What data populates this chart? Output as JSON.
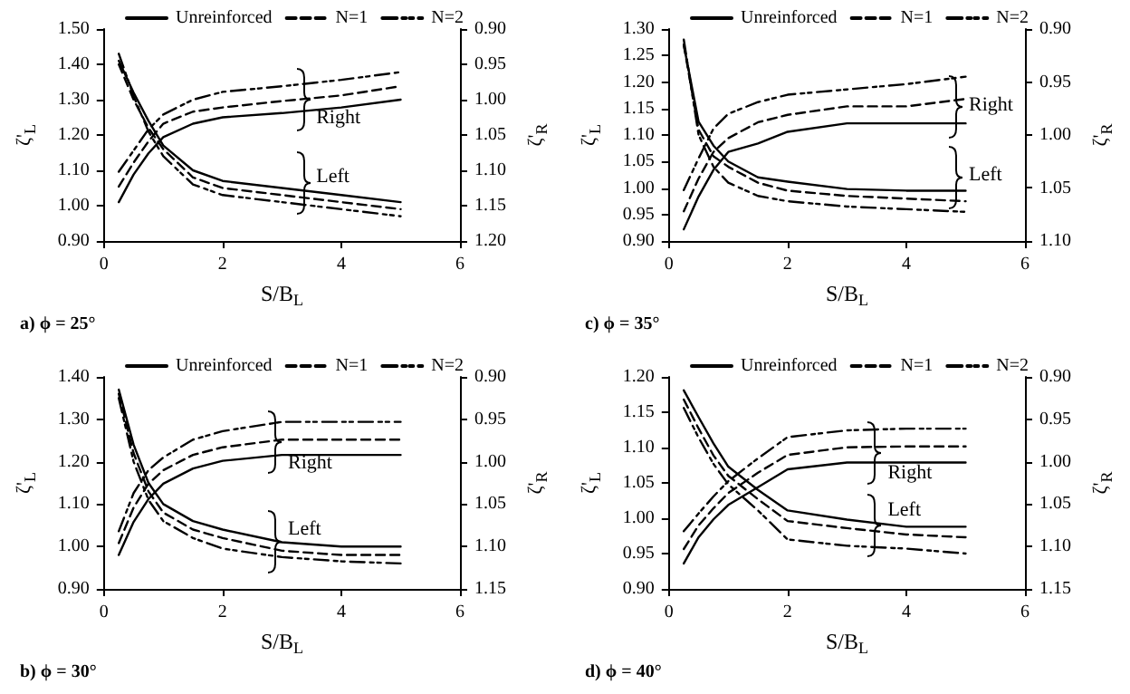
{
  "chart_data": [
    {
      "type": "line",
      "title": "a) ϕ = 25°",
      "xlabel": "S/B$_{L}$",
      "ylabel": "ζ'$_{L}$",
      "y2label": "ζ'$_{R}$",
      "legend": "top",
      "x": [
        0.25,
        0.5,
        0.75,
        1,
        1.5,
        2,
        3,
        4,
        5
      ],
      "xlim": [
        0,
        6
      ],
      "xticks": [
        0,
        2,
        4,
        6
      ],
      "ylim": [
        0.9,
        1.5
      ],
      "yticks": [
        {
          "value": 0.9,
          "label": "0.90"
        },
        {
          "value": 1.0,
          "label": "1.00"
        },
        {
          "value": 1.1,
          "label": "1.10"
        },
        {
          "value": 1.2,
          "label": "1.20"
        },
        {
          "value": 1.3,
          "label": "1.30"
        },
        {
          "value": 1.4,
          "label": "1.40"
        },
        {
          "value": 1.5,
          "label": "1.50"
        }
      ],
      "y2lim": [
        1.2,
        0.9
      ],
      "y2ticks": [
        {
          "value": 0.9,
          "label": "0.90"
        },
        {
          "value": 0.95,
          "label": "0.95"
        },
        {
          "value": 1.0,
          "label": "1.00"
        },
        {
          "value": 1.05,
          "label": "1.05"
        },
        {
          "value": 1.1,
          "label": "1.10"
        },
        {
          "value": 1.15,
          "label": "1.15"
        },
        {
          "value": 1.2,
          "label": "1.20"
        }
      ],
      "series": [
        {
          "name": "Unreinforced",
          "color": "#000000",
          "line_style": "solid",
          "values": [
            1.41,
            1.32,
            1.24,
            1.17,
            1.1,
            1.07,
            1.05,
            1.03,
            1.01
          ]
        },
        {
          "name": "N=1",
          "color": "#000000",
          "line_style": "dashed",
          "values": [
            1.4,
            1.3,
            1.22,
            1.16,
            1.08,
            1.05,
            1.03,
            1.01,
            0.99
          ]
        },
        {
          "name": "N=2",
          "color": "#000000",
          "line_style": "dashdot",
          "values": [
            1.43,
            1.31,
            1.21,
            1.14,
            1.06,
            1.03,
            1.01,
            0.99,
            0.97
          ]
        },
        {
          "color": "#000000",
          "line_style": "solid",
          "axis": "y2",
          "values": [
            1.145,
            1.106,
            1.076,
            1.053,
            1.034,
            1.025,
            1.019,
            1.011,
            1.0
          ]
        },
        {
          "color": "#000000",
          "line_style": "dashed",
          "axis": "y2",
          "values": [
            1.123,
            1.089,
            1.059,
            1.034,
            1.017,
            1.011,
            1.002,
            0.994,
            0.981
          ]
        },
        {
          "color": "#000000",
          "line_style": "dashdot",
          "axis": "y2",
          "values": [
            1.102,
            1.072,
            1.042,
            1.021,
            1.0,
            0.989,
            0.981,
            0.972,
            0.961
          ]
        }
      ],
      "annotations": [
        "Right",
        "Left"
      ]
    },
    {
      "type": "line",
      "title": "c) ϕ = 35°",
      "xlabel": "S/B$_{L}$",
      "ylabel": "ζ'$_{L}$",
      "y2label": "ζ'$_{R}$",
      "legend": "top",
      "x": [
        0.25,
        0.5,
        0.75,
        1,
        1.5,
        2,
        3,
        4,
        5
      ],
      "xlim": [
        0,
        6
      ],
      "xticks": [
        0,
        2,
        4,
        6
      ],
      "ylim": [
        0.9,
        1.3
      ],
      "yticks": [
        {
          "value": 0.9,
          "label": "0.90"
        },
        {
          "value": 0.95,
          "label": "0.95"
        },
        {
          "value": 1.0,
          "label": "1.00"
        },
        {
          "value": 1.05,
          "label": "1.05"
        },
        {
          "value": 1.1,
          "label": "1.10"
        },
        {
          "value": 1.15,
          "label": "1.15"
        },
        {
          "value": 1.2,
          "label": "1.20"
        },
        {
          "value": 1.25,
          "label": "1.25"
        },
        {
          "value": 1.3,
          "label": "1.30"
        }
      ],
      "y2lim": [
        1.1,
        0.9
      ],
      "y2ticks": [
        {
          "value": 0.9,
          "label": "0.90"
        },
        {
          "value": 0.95,
          "label": "0.95"
        },
        {
          "value": 1.0,
          "label": "1.00"
        },
        {
          "value": 1.05,
          "label": "1.05"
        },
        {
          "value": 1.1,
          "label": "1.10"
        }
      ],
      "series": [
        {
          "name": "Unreinforced",
          "color": "#000000",
          "line_style": "solid",
          "values": [
            1.27,
            1.125,
            1.08,
            1.05,
            1.02,
            1.012,
            0.998,
            0.995,
            0.995
          ]
        },
        {
          "name": "N=1",
          "color": "#000000",
          "line_style": "dashed",
          "values": [
            1.27,
            1.11,
            1.06,
            1.04,
            1.01,
            0.995,
            0.985,
            0.98,
            0.975
          ]
        },
        {
          "name": "N=2",
          "color": "#000000",
          "line_style": "dashdot",
          "values": [
            1.28,
            1.1,
            1.04,
            1.01,
            0.985,
            0.975,
            0.965,
            0.96,
            0.955
          ]
        },
        {
          "color": "#000000",
          "line_style": "solid",
          "axis": "y2",
          "values": [
            1.089,
            1.058,
            1.033,
            1.016,
            1.008,
            0.997,
            0.989,
            0.989,
            0.989
          ]
        },
        {
          "color": "#000000",
          "line_style": "dashed",
          "axis": "y2",
          "values": [
            1.072,
            1.041,
            1.016,
            1.003,
            0.988,
            0.981,
            0.973,
            0.973,
            0.966
          ]
        },
        {
          "color": "#000000",
          "line_style": "dashdot",
          "axis": "y2",
          "values": [
            1.052,
            1.022,
            0.994,
            0.98,
            0.969,
            0.962,
            0.957,
            0.952,
            0.945
          ]
        }
      ],
      "annotations": [
        "Right",
        "Left"
      ]
    },
    {
      "type": "line",
      "title": "b) ϕ = 30°",
      "xlabel": "S/B$_{L}$",
      "ylabel": "ζ'$_{L}$",
      "y2label": "ζ'$_{R}$",
      "legend": "top",
      "x": [
        0.25,
        0.5,
        0.75,
        1,
        1.5,
        2,
        3,
        4,
        5
      ],
      "xlim": [
        0,
        6
      ],
      "xticks": [
        0,
        2,
        4,
        6
      ],
      "ylim": [
        0.9,
        1.4
      ],
      "yticks": [
        {
          "value": 0.9,
          "label": "0.90"
        },
        {
          "value": 1.0,
          "label": "1.00"
        },
        {
          "value": 1.1,
          "label": "1.10"
        },
        {
          "value": 1.2,
          "label": "1.20"
        },
        {
          "value": 1.3,
          "label": "1.30"
        },
        {
          "value": 1.4,
          "label": "1.40"
        }
      ],
      "y2lim": [
        1.15,
        0.9
      ],
      "y2ticks": [
        {
          "value": 0.9,
          "label": "0.90"
        },
        {
          "value": 0.95,
          "label": "0.95"
        },
        {
          "value": 1.0,
          "label": "1.00"
        },
        {
          "value": 1.05,
          "label": "1.05"
        },
        {
          "value": 1.1,
          "label": "1.10"
        },
        {
          "value": 1.15,
          "label": "1.15"
        }
      ],
      "series": [
        {
          "name": "Unreinforced",
          "color": "#000000",
          "line_style": "solid",
          "values": [
            1.37,
            1.24,
            1.15,
            1.1,
            1.06,
            1.04,
            1.01,
            1.0,
            1.0
          ]
        },
        {
          "name": "N=1",
          "color": "#000000",
          "line_style": "dashed",
          "values": [
            1.36,
            1.22,
            1.13,
            1.08,
            1.04,
            1.02,
            0.99,
            0.98,
            0.98
          ]
        },
        {
          "name": "N=2",
          "color": "#000000",
          "line_style": "dashdot",
          "values": [
            1.35,
            1.2,
            1.11,
            1.06,
            1.02,
            0.995,
            0.975,
            0.965,
            0.96
          ]
        },
        {
          "color": "#000000",
          "line_style": "solid",
          "axis": "y2",
          "values": [
            1.11,
            1.071,
            1.044,
            1.026,
            1.008,
            0.999,
            0.992,
            0.992,
            0.992
          ]
        },
        {
          "color": "#000000",
          "line_style": "dashed",
          "axis": "y2",
          "values": [
            1.096,
            1.054,
            1.026,
            1.01,
            0.992,
            0.983,
            0.974,
            0.974,
            0.974
          ]
        },
        {
          "color": "#000000",
          "line_style": "dashdot",
          "axis": "y2",
          "values": [
            1.082,
            1.037,
            1.01,
            0.995,
            0.974,
            0.964,
            0.953,
            0.953,
            0.953
          ]
        }
      ],
      "annotations": [
        "Right",
        "Left"
      ]
    },
    {
      "type": "line",
      "title": "d) ϕ = 40°",
      "xlabel": "S/B$_{L}$",
      "ylabel": "ζ'$_{L}$",
      "y2label": "ζ'$_{R}$",
      "legend": "top",
      "x": [
        0.25,
        0.5,
        0.75,
        1,
        1.5,
        2,
        3,
        4,
        5
      ],
      "xlim": [
        0,
        6
      ],
      "xticks": [
        0,
        2,
        4,
        6
      ],
      "ylim": [
        0.9,
        1.2
      ],
      "yticks": [
        {
          "value": 0.9,
          "label": "0.90"
        },
        {
          "value": 0.95,
          "label": "0.95"
        },
        {
          "value": 1.0,
          "label": "1.00"
        },
        {
          "value": 1.05,
          "label": "1.05"
        },
        {
          "value": 1.1,
          "label": "1.10"
        },
        {
          "value": 1.15,
          "label": "1.15"
        },
        {
          "value": 1.2,
          "label": "1.20"
        }
      ],
      "y2lim": [
        1.15,
        0.9
      ],
      "y2ticks": [
        {
          "value": 0.9,
          "label": "0.90"
        },
        {
          "value": 0.95,
          "label": "0.95"
        },
        {
          "value": 1.0,
          "label": "1.00"
        },
        {
          "value": 1.05,
          "label": "1.05"
        },
        {
          "value": 1.1,
          "label": "1.10"
        },
        {
          "value": 1.15,
          "label": "1.15"
        }
      ],
      "series": [
        {
          "name": "Unreinforced",
          "color": "#000000",
          "line_style": "solid",
          "values": [
            1.181,
            1.143,
            1.106,
            1.073,
            1.04,
            1.011,
            0.998,
            0.988,
            0.988
          ]
        },
        {
          "name": "N=1",
          "color": "#000000",
          "line_style": "dashed",
          "values": [
            1.168,
            1.127,
            1.089,
            1.06,
            1.027,
            0.996,
            0.986,
            0.977,
            0.973
          ]
        },
        {
          "name": "N=2",
          "color": "#000000",
          "line_style": "dashdot",
          "values": [
            1.156,
            1.114,
            1.077,
            1.048,
            1.011,
            0.97,
            0.961,
            0.957,
            0.95
          ]
        },
        {
          "color": "#000000",
          "line_style": "solid",
          "axis": "y2",
          "values": [
            1.12,
            1.089,
            1.068,
            1.051,
            1.03,
            1.009,
            1.001,
            1.001,
            1.001
          ]
        },
        {
          "color": "#000000",
          "line_style": "dashed",
          "axis": "y2",
          "values": [
            1.103,
            1.075,
            1.055,
            1.037,
            1.013,
            0.992,
            0.983,
            0.982,
            0.982
          ]
        },
        {
          "color": "#000000",
          "line_style": "dashdot",
          "axis": "y2",
          "values": [
            1.082,
            1.061,
            1.041,
            1.023,
            0.996,
            0.971,
            0.963,
            0.961,
            0.961
          ]
        }
      ],
      "annotations": [
        "Right",
        "Left"
      ]
    }
  ]
}
